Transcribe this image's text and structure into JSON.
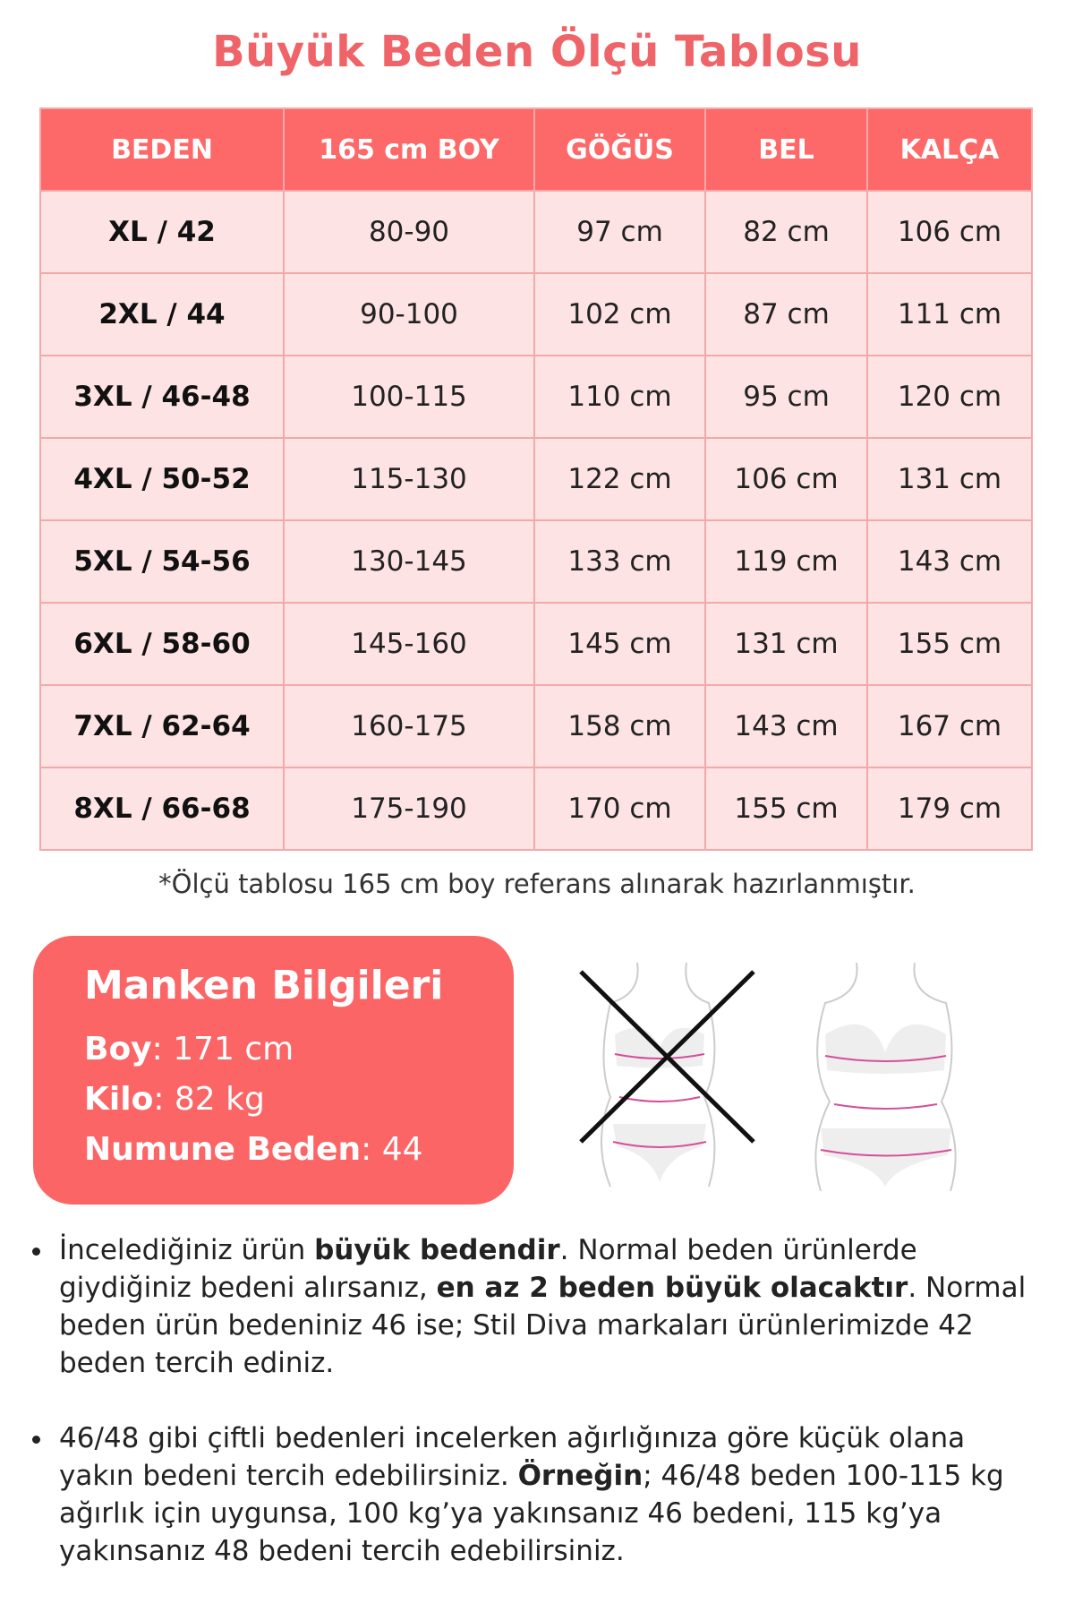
{
  "title": "Büyük Beden Ölçü Tablosu",
  "table": {
    "headers": [
      "BEDEN",
      "165 cm BOY",
      "GÖĞÜS",
      "BEL",
      "KALÇA"
    ],
    "rows": [
      [
        "XL / 42",
        "80-90",
        "97 cm",
        "82 cm",
        "106 cm"
      ],
      [
        "2XL / 44",
        "90-100",
        "102 cm",
        "87 cm",
        "111 cm"
      ],
      [
        "3XL / 46-48",
        "100-115",
        "110 cm",
        "95 cm",
        "120 cm"
      ],
      [
        "4XL / 50-52",
        "115-130",
        "122 cm",
        "106 cm",
        "131 cm"
      ],
      [
        "5XL / 54-56",
        "130-145",
        "133 cm",
        "119 cm",
        "143 cm"
      ],
      [
        "6XL / 58-60",
        "145-160",
        "145 cm",
        "131 cm",
        "155 cm"
      ],
      [
        "7XL / 62-64",
        "160-175",
        "158 cm",
        "143 cm",
        "167 cm"
      ],
      [
        "8XL / 66-68",
        "175-190",
        "170 cm",
        "155 cm",
        "179 cm"
      ]
    ]
  },
  "note": "*Ölçü tablosu 165 cm boy referans alınarak hazırlanmıştır.",
  "model": {
    "title": "Manken Bilgileri",
    "items": [
      {
        "label": "Boy",
        "value": ": 171 cm"
      },
      {
        "label": "Kilo",
        "value": ": 82 kg"
      },
      {
        "label": "Numune Beden",
        "value": ": 44"
      }
    ]
  },
  "figures": {
    "wrong": "crossed-body-measurement-icon",
    "correct": "body-measurement-icon"
  },
  "bullets": [
    [
      "İncelediğiniz ürün ",
      "büyük bedendir",
      ". Normal beden ürünlerde giydiğiniz bedeni alırsanız, ",
      "en az 2 beden büyük olacaktır",
      ". Normal beden ürün bedeniniz 46 ise; Stil Diva markaları ürünlerimizde 42 beden tercih ediniz."
    ],
    [
      "46/48 gibi çiftli bedenleri incelerken ağırlığınıza göre küçük olana yakın bedeni tercih edebilirsiniz. ",
      "Örneğin",
      "; 46/48 beden 100-115 kg ağırlık için uygunsa, 100 kg’ya yakınsanız 46 bedeni, 115 kg’ya yakınsanız 48 bedeni tercih edebilirsiniz.",
      "",
      ""
    ]
  ],
  "colors": {
    "accent": "#fd6868",
    "row": "#fde3e3",
    "title": "#ef6468"
  }
}
